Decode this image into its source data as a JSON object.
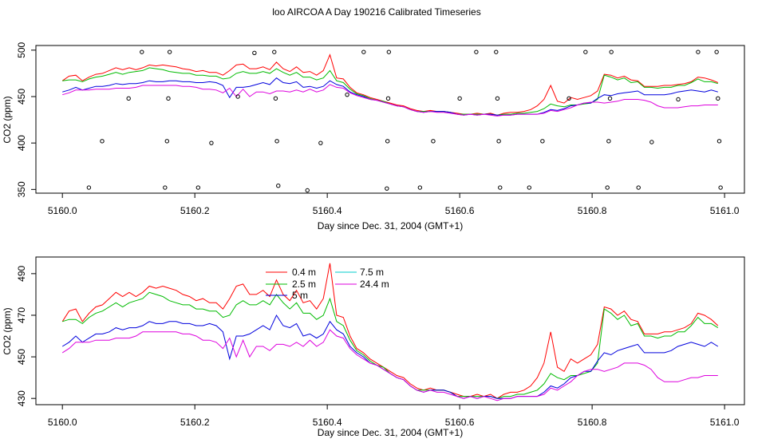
{
  "title": "loo AIRCOA A  Day 190216  Calibrated Timeseries",
  "chart_data": [
    {
      "type": "scatter",
      "panel": "top",
      "xlabel": "Day since Dec. 31, 2004 (GMT+1)",
      "ylabel": "CO2 (ppm)",
      "xlim": [
        5159.96,
        5161.03
      ],
      "ylim": [
        346,
        505
      ],
      "xticks": [
        5160.0,
        5160.2,
        5160.4,
        5160.6,
        5160.8,
        5161.0
      ],
      "xtick_labels": [
        "5160.0",
        "5160.2",
        "5160.4",
        "5160.6",
        "5160.8",
        "5161.0"
      ],
      "yticks": [
        350,
        400,
        450,
        500
      ],
      "ytick_labels": [
        "350",
        "400",
        "450",
        "500"
      ],
      "series": [
        {
          "color": "#ff0000",
          "values": [
            467,
            472,
            473,
            467,
            471,
            474,
            475,
            478,
            481,
            479,
            481,
            479,
            481,
            484,
            483,
            484,
            483,
            482,
            480,
            479,
            477,
            478,
            476,
            476,
            473,
            478,
            484,
            485,
            480,
            480,
            482,
            479,
            487,
            480,
            477,
            482,
            476,
            477,
            473,
            478,
            495,
            470,
            469,
            460,
            454,
            452,
            449,
            447,
            445,
            443,
            441,
            440,
            437,
            435,
            434,
            435,
            434,
            434,
            433,
            432,
            431,
            431,
            432,
            431,
            432,
            430,
            432,
            433,
            433,
            434,
            436,
            440,
            447,
            462,
            445,
            443,
            449,
            447,
            449,
            451,
            456,
            474,
            473,
            470,
            472,
            468,
            467,
            461,
            461,
            461,
            462,
            462,
            463,
            464,
            466,
            471,
            470,
            468,
            465
          ]
        },
        {
          "color": "#00bb00",
          "values": [
            467,
            468,
            468,
            466,
            469,
            471,
            472,
            474,
            476,
            474,
            476,
            477,
            478,
            481,
            480,
            479,
            477,
            476,
            475,
            475,
            473,
            473,
            472,
            472,
            469,
            470,
            475,
            477,
            475,
            475,
            477,
            475,
            480,
            476,
            473,
            476,
            471,
            471,
            468,
            470,
            478,
            467,
            465,
            458,
            453,
            451,
            448,
            446,
            445,
            442,
            440,
            439,
            436,
            434,
            434,
            434,
            434,
            434,
            433,
            431,
            431,
            431,
            431,
            431,
            431,
            430,
            431,
            431,
            432,
            432,
            433,
            434,
            437,
            442,
            440,
            439,
            441,
            441,
            442,
            443,
            447,
            473,
            471,
            468,
            470,
            465,
            466,
            460,
            460,
            459,
            460,
            460,
            462,
            462,
            465,
            469,
            466,
            466,
            464
          ]
        },
        {
          "color": "#0000dd",
          "values": [
            455,
            457,
            460,
            457,
            459,
            461,
            461,
            462,
            464,
            463,
            464,
            464,
            465,
            467,
            466,
            466,
            467,
            467,
            466,
            466,
            465,
            465,
            466,
            465,
            462,
            449,
            460,
            460,
            461,
            463,
            465,
            463,
            470,
            465,
            464,
            466,
            460,
            461,
            459,
            461,
            467,
            463,
            461,
            455,
            452,
            450,
            447,
            446,
            444,
            442,
            440,
            439,
            436,
            434,
            433,
            434,
            434,
            434,
            433,
            431,
            430,
            431,
            430,
            431,
            431,
            430,
            430,
            430,
            431,
            431,
            431,
            431,
            433,
            436,
            435,
            437,
            440,
            441,
            443,
            443,
            448,
            452,
            451,
            453,
            454,
            455,
            456,
            452,
            452,
            452,
            452,
            453,
            455,
            456,
            457,
            456,
            455,
            457,
            455
          ]
        },
        {
          "color": "#dd00dd",
          "values": [
            452,
            454,
            457,
            457,
            457,
            458,
            458,
            458,
            459,
            459,
            459,
            460,
            462,
            462,
            462,
            462,
            462,
            462,
            461,
            461,
            460,
            458,
            458,
            457,
            454,
            459,
            450,
            458,
            450,
            455,
            455,
            453,
            456,
            456,
            455,
            457,
            455,
            458,
            455,
            457,
            463,
            460,
            459,
            454,
            451,
            449,
            447,
            446,
            444,
            442,
            440,
            439,
            436,
            434,
            433,
            434,
            433,
            433,
            432,
            431,
            430,
            431,
            430,
            431,
            430,
            429,
            430,
            430,
            431,
            431,
            431,
            431,
            432,
            435,
            434,
            436,
            438,
            441,
            443,
            444,
            444,
            443,
            444,
            445,
            447,
            447,
            447,
            446,
            444,
            440,
            438,
            438,
            438,
            439,
            440,
            440,
            441,
            441,
            441
          ]
        },
        {
          "color": "#000000",
          "marker": "circle",
          "points": [
            [
              5160.04,
              352
            ],
            [
              5160.06,
              402
            ],
            [
              5160.1,
              448
            ],
            [
              5160.12,
              498
            ],
            [
              5160.155,
              352
            ],
            [
              5160.158,
              402
            ],
            [
              5160.16,
              448
            ],
            [
              5160.162,
              498
            ],
            [
              5160.205,
              352
            ],
            [
              5160.225,
              400
            ],
            [
              5160.265,
              450
            ],
            [
              5160.29,
              497
            ],
            [
              5160.32,
              498
            ],
            [
              5160.322,
              448
            ],
            [
              5160.324,
              402
            ],
            [
              5160.326,
              354
            ],
            [
              5160.37,
              349
            ],
            [
              5160.39,
              400
            ],
            [
              5160.43,
              452
            ],
            [
              5160.455,
              498
            ],
            [
              5160.49,
              351
            ],
            [
              5160.491,
              402
            ],
            [
              5160.492,
              448
            ],
            [
              5160.493,
              498
            ],
            [
              5160.54,
              352
            ],
            [
              5160.56,
              402
            ],
            [
              5160.6,
              448
            ],
            [
              5160.625,
              498
            ],
            [
              5160.655,
              498
            ],
            [
              5160.657,
              448
            ],
            [
              5160.659,
              402
            ],
            [
              5160.661,
              352
            ],
            [
              5160.705,
              352
            ],
            [
              5160.725,
              402
            ],
            [
              5160.765,
              448
            ],
            [
              5160.79,
              498
            ],
            [
              5160.823,
              352
            ],
            [
              5160.825,
              402
            ],
            [
              5160.827,
              448
            ],
            [
              5160.829,
              498
            ],
            [
              5160.87,
              352
            ],
            [
              5160.89,
              401
            ],
            [
              5160.93,
              447
            ],
            [
              5160.96,
              498
            ],
            [
              5160.988,
              498
            ],
            [
              5160.99,
              448
            ],
            [
              5160.992,
              402
            ],
            [
              5160.994,
              352
            ]
          ]
        }
      ]
    },
    {
      "type": "line",
      "panel": "bottom",
      "xlabel": "Day since Dec. 31, 2004 (GMT+1)",
      "ylabel": "CO2 (ppm)",
      "xlim": [
        5159.96,
        5161.03
      ],
      "ylim": [
        427,
        498
      ],
      "xticks": [
        5160.0,
        5160.2,
        5160.4,
        5160.6,
        5160.8,
        5161.0
      ],
      "xtick_labels": [
        "5160.0",
        "5160.2",
        "5160.4",
        "5160.6",
        "5160.8",
        "5161.0"
      ],
      "yticks": [
        430,
        450,
        470,
        490
      ],
      "ytick_labels": [
        "430",
        "450",
        "470",
        "490"
      ],
      "legend": {
        "placement": "top-center",
        "entries": [
          {
            "name": "0.4 m",
            "color": "#ff0000"
          },
          {
            "name": "2.5 m",
            "color": "#00bb00"
          },
          {
            "name": "5 m",
            "color": "#0000dd"
          },
          {
            "name": "7.5 m",
            "color": "#00cccc"
          },
          {
            "name": "24.4 m",
            "color": "#dd00dd"
          }
        ]
      },
      "series": [
        {
          "name": "0.4 m",
          "color": "#ff0000",
          "values": [
            467,
            472,
            473,
            467,
            471,
            474,
            475,
            478,
            481,
            479,
            481,
            479,
            481,
            484,
            483,
            484,
            483,
            482,
            480,
            479,
            477,
            478,
            476,
            476,
            473,
            478,
            484,
            485,
            480,
            480,
            482,
            479,
            487,
            480,
            477,
            482,
            476,
            477,
            473,
            478,
            495,
            470,
            469,
            460,
            454,
            452,
            449,
            447,
            445,
            443,
            441,
            440,
            437,
            435,
            434,
            435,
            434,
            434,
            433,
            432,
            431,
            431,
            432,
            431,
            432,
            430,
            432,
            433,
            433,
            434,
            436,
            440,
            447,
            462,
            445,
            443,
            449,
            447,
            449,
            451,
            456,
            474,
            473,
            470,
            472,
            468,
            467,
            461,
            461,
            461,
            462,
            462,
            463,
            464,
            466,
            471,
            470,
            468,
            465
          ]
        },
        {
          "name": "2.5 m",
          "color": "#00bb00",
          "values": [
            467,
            468,
            468,
            466,
            469,
            471,
            472,
            474,
            476,
            474,
            476,
            477,
            478,
            481,
            480,
            479,
            477,
            476,
            475,
            475,
            473,
            473,
            472,
            472,
            469,
            470,
            475,
            477,
            475,
            475,
            477,
            475,
            480,
            476,
            473,
            476,
            471,
            471,
            468,
            470,
            478,
            467,
            465,
            458,
            453,
            451,
            448,
            446,
            445,
            442,
            440,
            439,
            436,
            434,
            434,
            434,
            434,
            434,
            433,
            431,
            431,
            431,
            431,
            431,
            431,
            430,
            431,
            431,
            432,
            432,
            433,
            434,
            437,
            442,
            440,
            439,
            441,
            441,
            442,
            443,
            447,
            473,
            471,
            468,
            470,
            465,
            466,
            460,
            460,
            459,
            460,
            460,
            462,
            462,
            465,
            469,
            466,
            466,
            464
          ]
        },
        {
          "name": "5 m",
          "color": "#0000dd",
          "values": [
            455,
            457,
            460,
            457,
            459,
            461,
            461,
            462,
            464,
            463,
            464,
            464,
            465,
            467,
            466,
            466,
            467,
            467,
            466,
            466,
            465,
            465,
            466,
            465,
            462,
            449,
            460,
            460,
            461,
            463,
            465,
            463,
            470,
            465,
            464,
            466,
            460,
            461,
            459,
            461,
            467,
            463,
            461,
            455,
            452,
            450,
            447,
            446,
            444,
            442,
            440,
            439,
            436,
            434,
            433,
            434,
            434,
            434,
            433,
            431,
            430,
            431,
            430,
            431,
            431,
            430,
            430,
            430,
            431,
            431,
            431,
            431,
            433,
            436,
            435,
            437,
            440,
            441,
            443,
            443,
            448,
            452,
            451,
            453,
            454,
            455,
            456,
            452,
            452,
            452,
            452,
            453,
            455,
            456,
            457,
            456,
            455,
            457,
            455
          ]
        },
        {
          "name": "24.4 m",
          "color": "#dd00dd",
          "values": [
            452,
            454,
            457,
            457,
            457,
            458,
            458,
            458,
            459,
            459,
            459,
            460,
            462,
            462,
            462,
            462,
            462,
            462,
            461,
            461,
            460,
            458,
            458,
            457,
            454,
            459,
            450,
            458,
            450,
            455,
            455,
            453,
            456,
            456,
            455,
            457,
            455,
            458,
            455,
            457,
            463,
            460,
            459,
            454,
            451,
            449,
            447,
            446,
            444,
            442,
            440,
            439,
            436,
            434,
            433,
            434,
            433,
            433,
            432,
            431,
            430,
            431,
            430,
            431,
            430,
            429,
            430,
            430,
            431,
            431,
            431,
            431,
            432,
            435,
            434,
            436,
            438,
            441,
            443,
            444,
            444,
            443,
            444,
            445,
            447,
            447,
            447,
            446,
            444,
            440,
            438,
            438,
            438,
            439,
            440,
            440,
            441,
            441,
            441
          ]
        }
      ]
    }
  ]
}
